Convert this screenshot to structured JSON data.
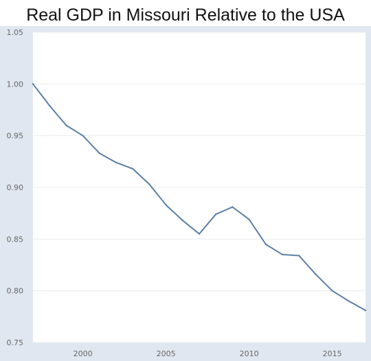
{
  "chart_data": {
    "type": "line",
    "title": "Real GDP in Missouri Relative to the USA",
    "xlabel": "",
    "ylabel": "",
    "xlim": [
      1997,
      2017
    ],
    "ylim": [
      0.75,
      1.05
    ],
    "x_ticks": [
      "2000",
      "2005",
      "2010",
      "2015"
    ],
    "y_ticks": [
      "0.75",
      "0.80",
      "0.85",
      "0.90",
      "0.95",
      "1.00",
      "1.05"
    ],
    "grid": "horizontal",
    "colors": {
      "line": "#5b7fa6",
      "panel_bg": "#e1e7f0",
      "plot_bg": "#ffffff",
      "grid": "#e8ebf0"
    },
    "series": [
      {
        "x": [
          1997,
          1998,
          1999,
          2000,
          2001,
          2002,
          2003,
          2004,
          2005,
          2006,
          2007,
          2008,
          2009,
          2010,
          2011,
          2012,
          2013,
          2014,
          2015,
          2016,
          2017
        ],
        "values": [
          1.0,
          0.979,
          0.96,
          0.95,
          0.933,
          0.924,
          0.918,
          0.903,
          0.883,
          0.868,
          0.855,
          0.874,
          0.881,
          0.869,
          0.845,
          0.835,
          0.834,
          0.816,
          0.8,
          0.79,
          0.781
        ]
      }
    ]
  }
}
